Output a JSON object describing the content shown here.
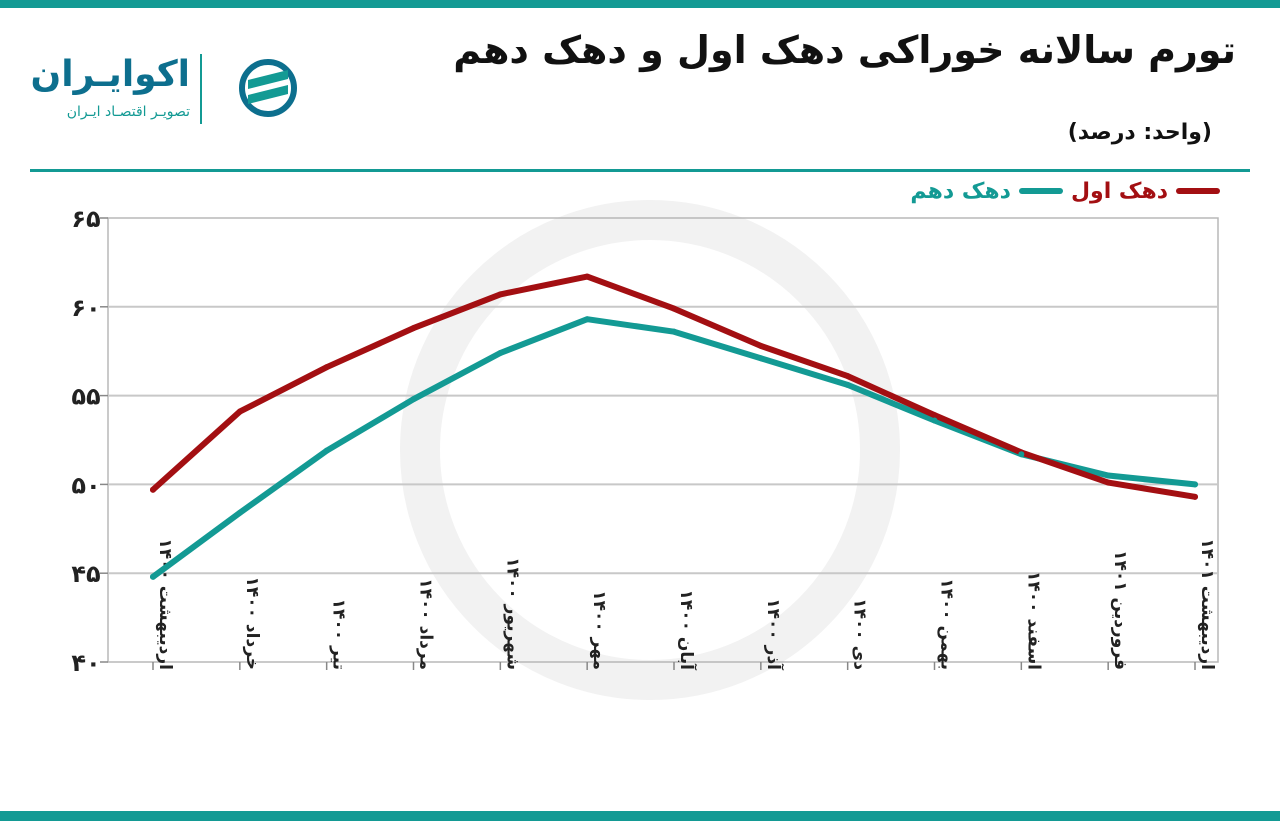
{
  "header": {
    "title": "تورم سالانه خوراکی دهک اول و دهک دهم",
    "unit": "(واحد: درصد)"
  },
  "logo": {
    "name": "اکوایـران",
    "tagline": "تصویـر اقتصـاد ایـران",
    "icon": "ecoiran-logo-icon"
  },
  "colors": {
    "accent": "#139a94",
    "decile1": "#a30f12",
    "decile10": "#139a94",
    "grid": "#c8c8c8"
  },
  "legend": [
    {
      "name": "دهک اول",
      "color": "#a30f12"
    },
    {
      "name": "دهک دهم",
      "color": "#139a94"
    }
  ],
  "chart_data": {
    "type": "line",
    "categories": [
      "اردیبهشت ۱۴۰۰",
      "خرداد ۱۴۰۰",
      "تیر ۱۴۰۰",
      "مرداد ۱۴۰۰",
      "شهریور ۱۴۰۰",
      "مهر ۱۴۰۰",
      "آبان ۱۴۰۰",
      "آذر ۱۴۰۰",
      "دی ۱۴۰۰",
      "بهمن ۱۴۰۰",
      "اسفند ۱۴۰۰",
      "فروردین ۱۴۰۱",
      "اردیبهشت ۱۴۰۱"
    ],
    "series": [
      {
        "name": "دهک اول",
        "values": [
          49.7,
          54.1,
          56.6,
          58.8,
          60.7,
          61.7,
          59.9,
          57.8,
          56.1,
          53.9,
          51.8,
          50.1,
          49.3
        ]
      },
      {
        "name": "دهک دهم",
        "values": [
          44.8,
          48.4,
          51.9,
          54.8,
          57.4,
          59.3,
          58.6,
          57.1,
          55.6,
          53.6,
          51.7,
          50.5,
          50.0
        ]
      }
    ],
    "ylim": [
      40,
      65
    ],
    "yticks": [
      "۴۰",
      "۴۵",
      "۵۰",
      "۵۵",
      "۶۰",
      "۶۵"
    ],
    "grid": true,
    "legend_position": "top-right"
  }
}
